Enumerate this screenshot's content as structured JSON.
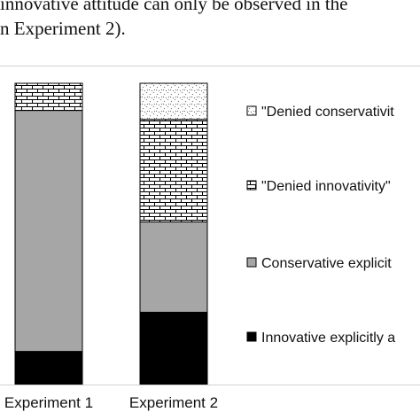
{
  "caption": {
    "line1": "innovative attitude can only be observed in the",
    "line2": "n Experiment 2)."
  },
  "chart_data": {
    "type": "bar",
    "stacked": true,
    "categories": [
      "Experiment 1",
      "Experiment 2"
    ],
    "series": [
      {
        "name": "Innovative explicitly a",
        "pattern": "solid-black",
        "values": [
          11,
          24
        ]
      },
      {
        "name": "Conservative explicit",
        "pattern": "solid-gray",
        "values": [
          80,
          30
        ]
      },
      {
        "name": "\"Denied innovativity\"",
        "pattern": "brick",
        "values": [
          9,
          34
        ]
      },
      {
        "name": "\"Denied conservativit",
        "pattern": "dots",
        "values": [
          0,
          12
        ]
      }
    ],
    "ylim": [
      0,
      100
    ],
    "legend_position": "right",
    "colors": {
      "black": "#000000",
      "gray": "#a6a6a6",
      "outline": "#000000"
    }
  }
}
